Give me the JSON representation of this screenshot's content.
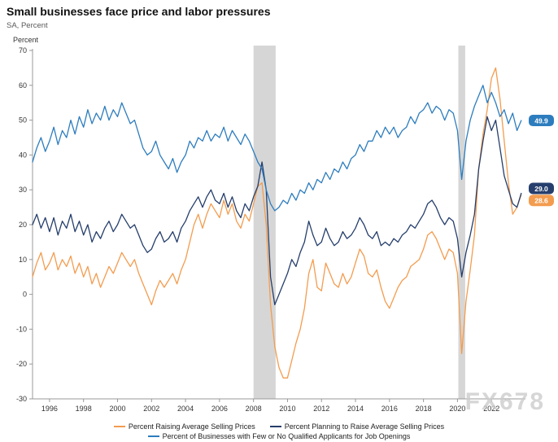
{
  "header": {
    "title": "Small businesses face price and labor pressures",
    "subtitle": "SA, Percent",
    "axis_unit_label": "Percent"
  },
  "watermark": "FX678",
  "colors": {
    "recession_band": "#d6d6d6",
    "axis": "#999999",
    "tick_text": "#333333",
    "orange": "#f39c4f",
    "navy": "#253e6c",
    "blue": "#2d7dbe",
    "watermark": "#cccccc"
  },
  "chart_data": {
    "type": "line",
    "title": "Small businesses face price and labor pressures",
    "ylabel": "Percent",
    "xlim": [
      1995,
      2024
    ],
    "ylim": [
      -30,
      70
    ],
    "y_ticks": [
      70,
      60,
      50,
      40,
      30,
      20,
      10,
      0,
      -10,
      -20,
      -30
    ],
    "x_ticks": [
      1996,
      1998,
      2000,
      2002,
      2004,
      2006,
      2008,
      2010,
      2012,
      2014,
      2016,
      2018,
      2020,
      2022
    ],
    "grid": false,
    "legend_position": "bottom",
    "x_start": 1995.0,
    "x_step": 0.25,
    "recession_bands": [
      [
        2008.0,
        2009.3
      ],
      [
        2020.05,
        2020.45
      ]
    ],
    "series": [
      {
        "name": "Percent Raising Average Selling Prices",
        "color": "#f39c4f",
        "end_label": "28.6",
        "label_dy": 7,
        "values": [
          5,
          9,
          12,
          7,
          9,
          12,
          7,
          10,
          8,
          11,
          6,
          9,
          5,
          8,
          3,
          6,
          2,
          5,
          8,
          6,
          9,
          12,
          10,
          8,
          10,
          6,
          3,
          0,
          -3,
          1,
          4,
          2,
          4,
          6,
          3,
          7,
          10,
          15,
          20,
          23,
          19,
          23,
          26,
          24,
          22,
          27,
          23,
          26,
          21,
          19,
          23,
          21,
          26,
          31,
          32,
          20,
          -3,
          -15,
          -21,
          -24,
          -24,
          -19,
          -14,
          -10,
          -4,
          6,
          10,
          2,
          1,
          9,
          6,
          3,
          2,
          6,
          3,
          5,
          9,
          13,
          11,
          6,
          5,
          7,
          2,
          -2,
          -4,
          -1,
          2,
          4,
          5,
          8,
          9,
          10,
          13,
          17,
          18,
          16,
          13,
          10,
          13,
          12,
          6,
          -17,
          -2,
          7,
          17,
          36,
          46,
          53,
          62,
          65,
          56,
          44,
          32,
          23,
          25,
          28.6
        ]
      },
      {
        "name": "Percent Planning to Raise Average Selling Prices",
        "color": "#253e6c",
        "end_label": "29.0",
        "label_dy": -6,
        "values": [
          20,
          23,
          19,
          22,
          18,
          22,
          17,
          21,
          19,
          23,
          18,
          21,
          17,
          20,
          15,
          18,
          16,
          19,
          21,
          18,
          20,
          23,
          21,
          19,
          20,
          17,
          14,
          12,
          13,
          16,
          18,
          15,
          16,
          18,
          15,
          19,
          21,
          24,
          26,
          28,
          25,
          28,
          30,
          27,
          26,
          29,
          25,
          28,
          24,
          22,
          26,
          24,
          28,
          31,
          38,
          30,
          5,
          -3,
          0,
          3,
          6,
          10,
          8,
          12,
          15,
          21,
          17,
          14,
          15,
          19,
          16,
          14,
          15,
          18,
          16,
          17,
          19,
          22,
          20,
          17,
          16,
          18,
          14,
          15,
          14,
          16,
          15,
          17,
          18,
          20,
          19,
          21,
          23,
          26,
          27,
          25,
          22,
          20,
          22,
          21,
          16,
          5,
          12,
          17,
          23,
          36,
          44,
          51,
          47,
          50,
          42,
          34,
          30,
          26,
          25,
          29
        ]
      },
      {
        "name": "Percent of Businesses with Few or No Qualified Applicants for Job Openings",
        "color": "#2d7dbe",
        "end_label": "49.9",
        "label_dy": 0,
        "values": [
          38,
          42,
          45,
          41,
          44,
          48,
          43,
          47,
          45,
          50,
          46,
          51,
          48,
          53,
          49,
          52,
          50,
          54,
          50,
          53,
          51,
          55,
          52,
          49,
          50,
          46,
          42,
          40,
          41,
          44,
          40,
          38,
          36,
          39,
          35,
          38,
          40,
          44,
          42,
          45,
          44,
          47,
          44,
          46,
          45,
          48,
          44,
          47,
          45,
          43,
          46,
          44,
          41,
          38,
          36,
          30,
          26,
          24,
          25,
          27,
          26,
          29,
          27,
          30,
          29,
          32,
          30,
          33,
          32,
          35,
          33,
          36,
          35,
          38,
          36,
          39,
          40,
          43,
          41,
          44,
          44,
          47,
          45,
          48,
          46,
          48,
          45,
          47,
          48,
          51,
          49,
          52,
          53,
          55,
          52,
          54,
          53,
          50,
          53,
          52,
          47,
          33,
          44,
          50,
          54,
          57,
          60,
          55,
          58,
          55,
          51,
          53,
          49,
          52,
          47,
          49.9
        ]
      }
    ]
  }
}
